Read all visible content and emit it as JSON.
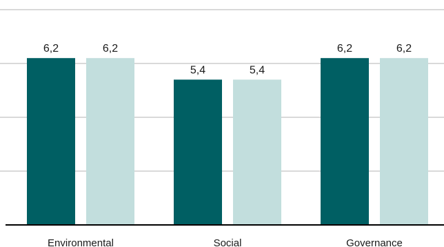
{
  "chart_data": {
    "type": "bar",
    "categories": [
      "Environmental",
      "Social",
      "Governance"
    ],
    "series": [
      {
        "values": [
          6.2,
          5.4,
          6.2
        ],
        "color": "#005f63"
      },
      {
        "values": [
          6.2,
          5.4,
          6.2
        ],
        "color": "#c2dedd"
      }
    ],
    "data_labels": [
      [
        "6,2",
        "5,4",
        "6,2"
      ],
      [
        "6,2",
        "5,4",
        "6,2"
      ]
    ],
    "ylim": [
      0,
      8
    ],
    "grid": true,
    "legend": "none"
  }
}
